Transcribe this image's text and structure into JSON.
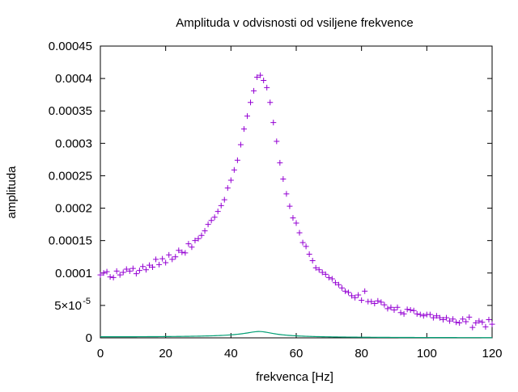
{
  "chart_data": {
    "type": "scatter",
    "title": "Amplituda v odvisnosti od vsiljene frekvence",
    "xlabel": "frekvenca [Hz]",
    "ylabel": "amplituda",
    "xlim": [
      0,
      120
    ],
    "ylim": [
      0,
      0.00045
    ],
    "grid": false,
    "legend": "none",
    "x_ticks": [
      "0",
      "20",
      "40",
      "60",
      "80",
      "100",
      "120"
    ],
    "x_tick_values": [
      0,
      20,
      40,
      60,
      80,
      100,
      120
    ],
    "y_ticks": [
      "0",
      "5×10",
      "0.0001",
      "0.00015",
      "0.0002",
      "0.00025",
      "0.0003",
      "0.00035",
      "0.0004",
      "0.00045"
    ],
    "y_tick_values": [
      0,
      5e-05,
      0.0001,
      0.00015,
      0.0002,
      0.00025,
      0.0003,
      0.00035,
      0.0004,
      0.00045
    ],
    "y_tick_exponent": "-5",
    "series": [
      {
        "style": "points",
        "marker": "+",
        "color": "#9400d3",
        "x": [
          0,
          1,
          2,
          3,
          4,
          5,
          6,
          7,
          8,
          9,
          10,
          11,
          12,
          13,
          14,
          15,
          16,
          17,
          18,
          19,
          20,
          21,
          22,
          23,
          24,
          25,
          26,
          27,
          28,
          29,
          30,
          31,
          32,
          33,
          34,
          35,
          36,
          37,
          38,
          39,
          40,
          41,
          42,
          43,
          44,
          45,
          46,
          47,
          48,
          49,
          50,
          51,
          52,
          53,
          54,
          55,
          56,
          57,
          58,
          59,
          60,
          61,
          62,
          63,
          64,
          65,
          66,
          67,
          68,
          69,
          70,
          71,
          72,
          73,
          74,
          75,
          76,
          77,
          78,
          79,
          80,
          81,
          82,
          83,
          84,
          85,
          86,
          87,
          88,
          89,
          90,
          91,
          92,
          93,
          94,
          95,
          96,
          97,
          98,
          99,
          100,
          101,
          102,
          103,
          104,
          105,
          106,
          107,
          108,
          109,
          110,
          111,
          112,
          113,
          114,
          115,
          116,
          117,
          118,
          119,
          120
        ],
        "y": [
          9.7e-05,
          0.0001,
          0.000102,
          9.4e-05,
          9.3e-05,
          0.000103,
          9.7e-05,
          0.000101,
          0.000106,
          0.000103,
          0.000107,
          9.9e-05,
          0.000104,
          0.00011,
          0.000105,
          0.000112,
          0.000109,
          0.000121,
          0.000113,
          0.000122,
          0.000116,
          0.000128,
          0.000121,
          0.000125,
          0.000135,
          0.000132,
          0.000131,
          0.000145,
          0.00014,
          0.00015,
          0.000153,
          0.000158,
          0.000165,
          0.000175,
          0.000181,
          0.000186,
          0.000195,
          0.000204,
          0.000213,
          0.000231,
          0.000243,
          0.000259,
          0.000274,
          0.000298,
          0.000322,
          0.000342,
          0.000363,
          0.000381,
          0.000402,
          0.000405,
          0.000397,
          0.000386,
          0.000363,
          0.000332,
          0.000303,
          0.00027,
          0.000245,
          0.000222,
          0.000203,
          0.000185,
          0.000177,
          0.000162,
          0.000147,
          0.000141,
          0.000129,
          0.000119,
          0.000108,
          0.000105,
          0.000101,
          9.8e-05,
          9.3e-05,
          9.1e-05,
          8.5e-05,
          8.2e-05,
          7.7e-05,
          7.2e-05,
          7e-05,
          6.5e-05,
          6.2e-05,
          6.6e-05,
          5.8e-05,
          7.2e-05,
          5.6e-05,
          5.6e-05,
          5.3e-05,
          5.7e-05,
          5.5e-05,
          5.1e-05,
          4.5e-05,
          4.7e-05,
          4.3e-05,
          4.7e-05,
          3.9e-05,
          3.7e-05,
          4.4e-05,
          4.3e-05,
          4.2e-05,
          3.7e-05,
          3.6e-05,
          3.4e-05,
          3.6e-05,
          3.6e-05,
          3.1e-05,
          3.4e-05,
          3.1e-05,
          2.8e-05,
          3.1e-05,
          2.6e-05,
          2.9e-05,
          2.4e-05,
          2.3e-05,
          2.9e-05,
          2.5e-05,
          3.2e-05,
          1.6e-05,
          2.3e-05,
          2.6e-05,
          2.4e-05,
          1.7e-05,
          2.8e-05,
          2.1e-05
        ]
      },
      {
        "style": "line",
        "color": "#009e73",
        "model": "driven_oscillator",
        "params": {
          "A": 0.00401,
          "f0": 49,
          "gamma": 8.4
        }
      }
    ]
  }
}
